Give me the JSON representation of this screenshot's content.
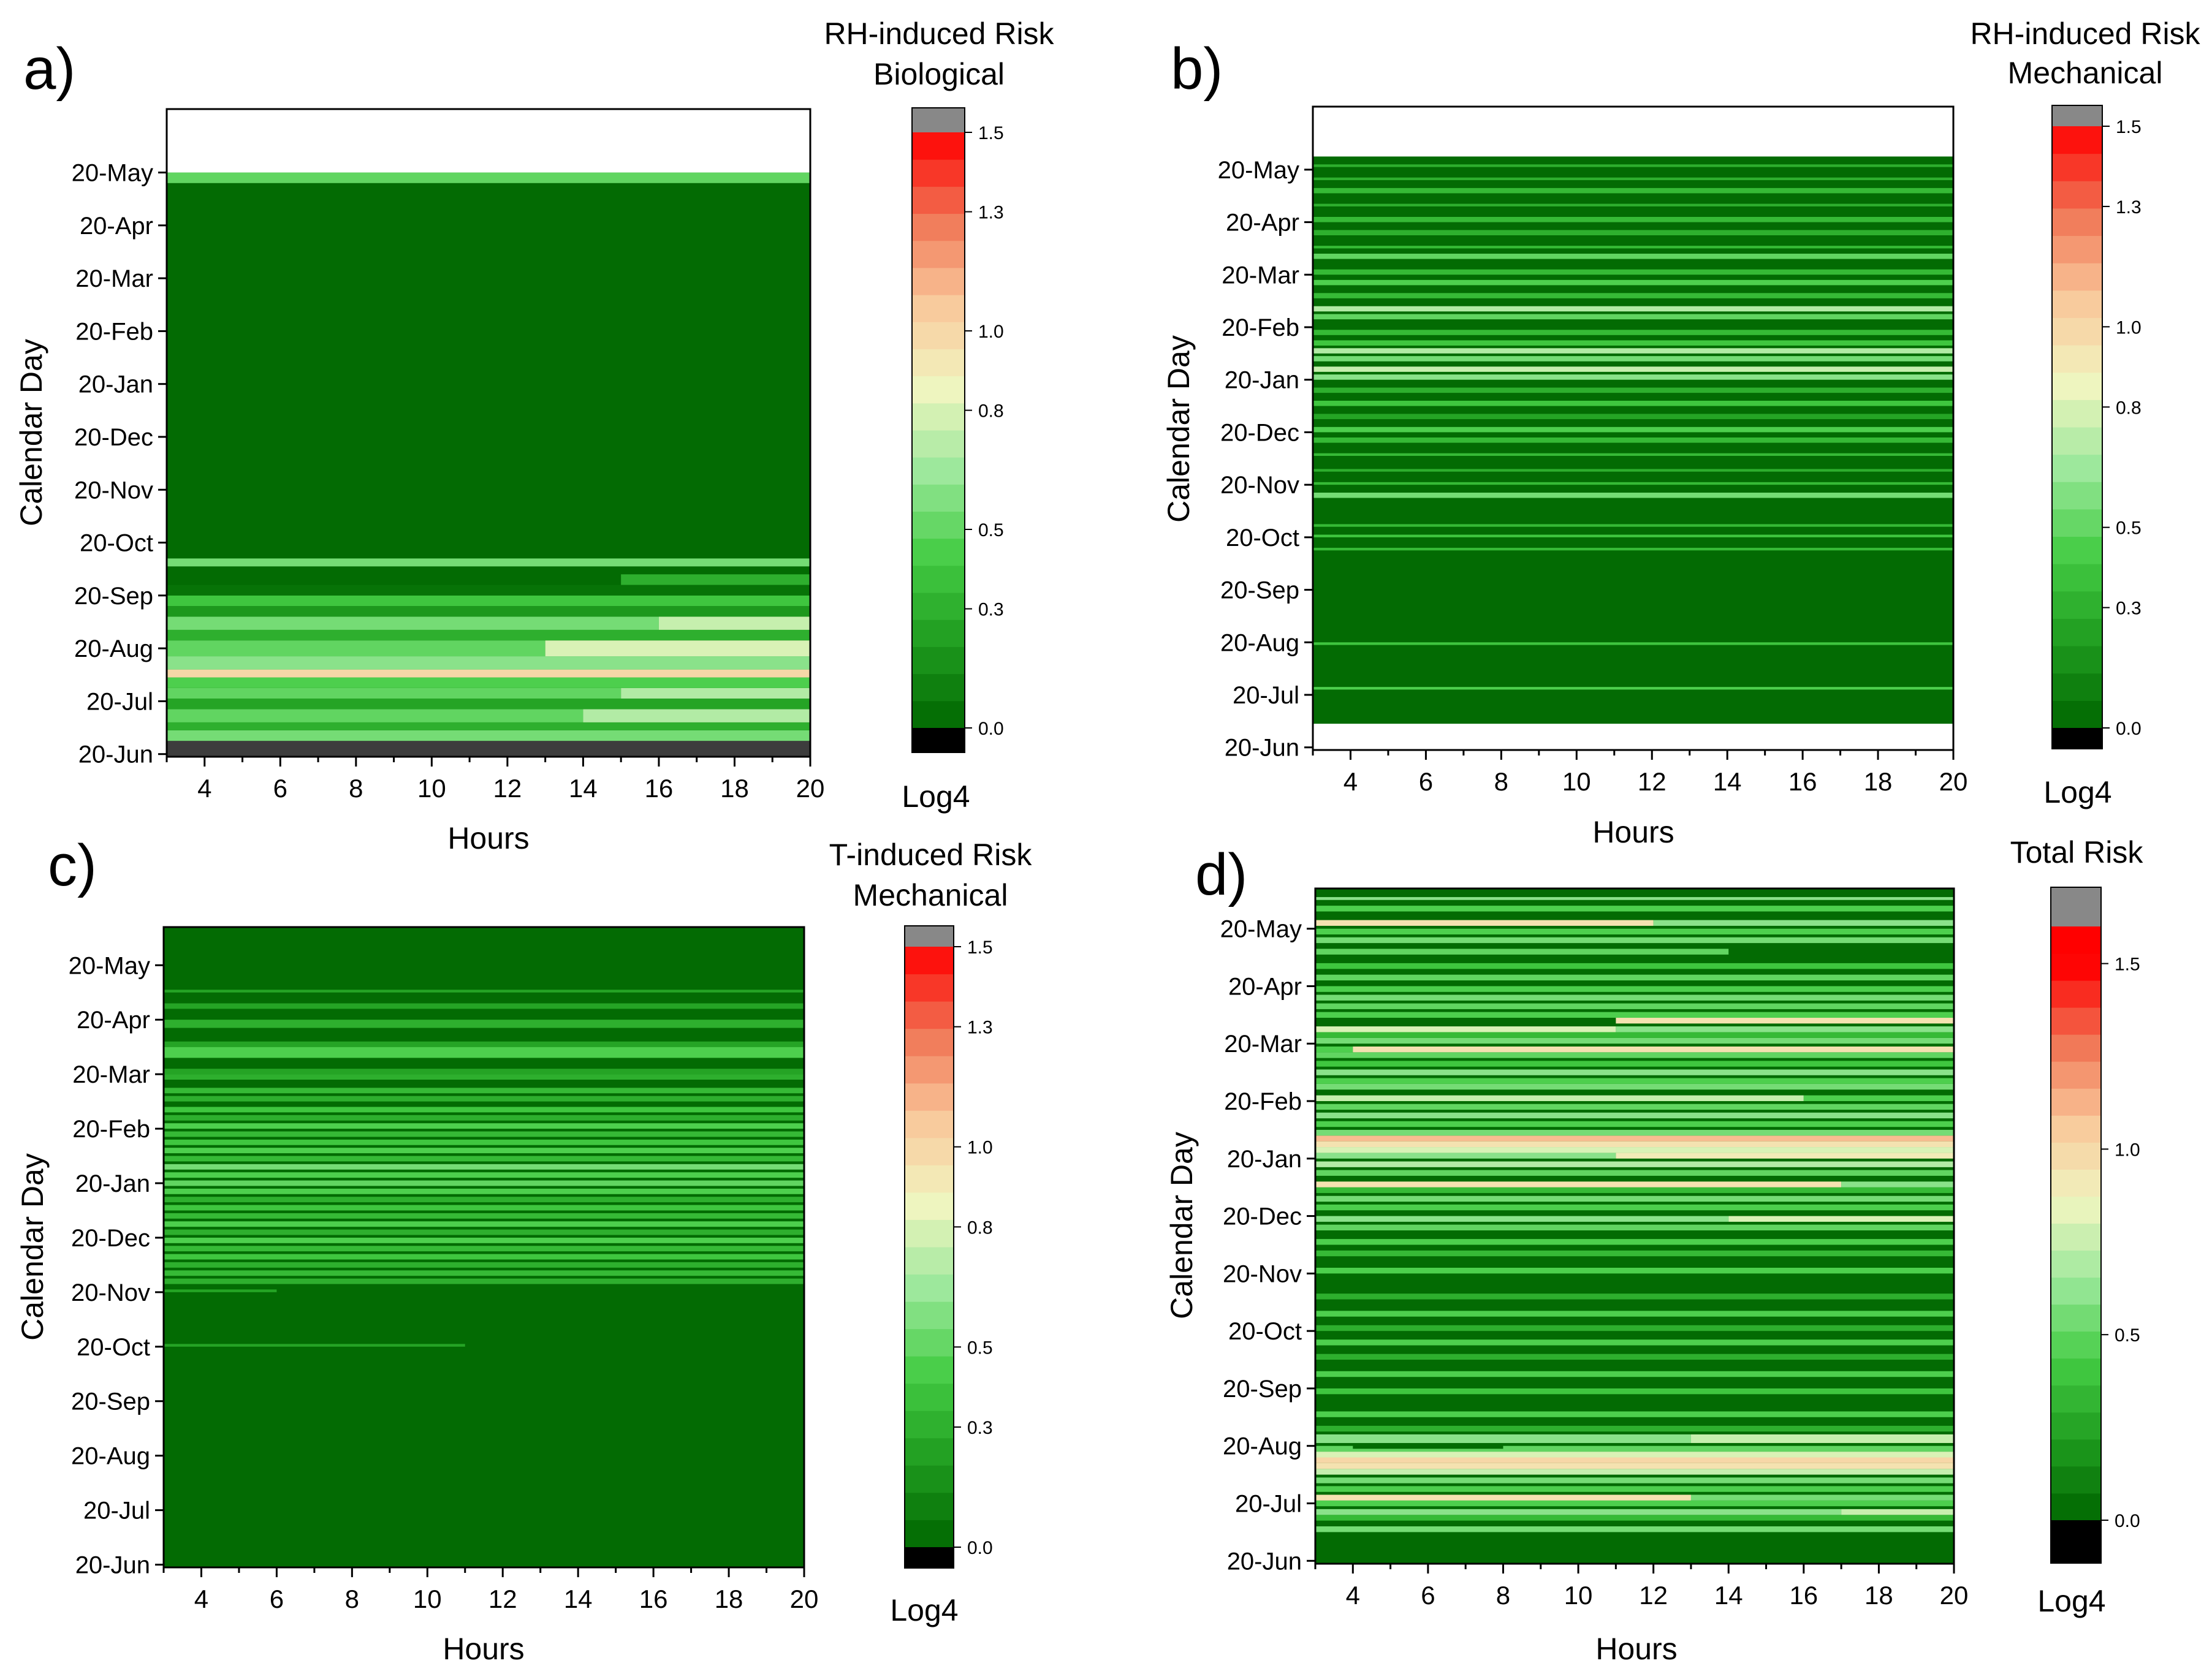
{
  "figure": {
    "colors": {
      "over": "#888888",
      "under": "#000000",
      "gray_band": "#3d3d3d",
      "empty": "#ffffff",
      "scale": [
        "#006600",
        "#1f9c1f",
        "#44cc44",
        "#9be89b",
        "#f0f5c0",
        "#f9c89a",
        "#f07454",
        "#ff0000"
      ]
    }
  },
  "chart_data": [
    {
      "panel": "a)",
      "type": "heatmap",
      "title": "",
      "colorbar_title": [
        "RH-induced Risk",
        "Biological"
      ],
      "colorbar_label": "Log4",
      "xlabel": "Hours",
      "ylabel": "Calendar Day",
      "x_ticks": [
        "4",
        "6",
        "8",
        "10",
        "12",
        "14",
        "16",
        "18",
        "20"
      ],
      "xlim": [
        3,
        20
      ],
      "y_ticks": [
        "20-Jun",
        "20-Jul",
        "20-Aug",
        "20-Sep",
        "20-Oct",
        "20-Nov",
        "20-Dec",
        "20-Jan",
        "20-Feb",
        "20-Mar",
        "20-Apr",
        "20-May"
      ],
      "colorbar_ticks": [
        "0.0",
        "0.3",
        "0.5",
        "0.8",
        "1.0",
        "1.3",
        "1.5"
      ],
      "colorbar_range": [
        0,
        1.5
      ],
      "data_end_month_index": 11.0,
      "bands": [
        {
          "from": -0.05,
          "to": 0.25,
          "value": "gray"
        },
        {
          "from": 0.25,
          "to": 0.45,
          "value": 0.55
        },
        {
          "from": 0.45,
          "to": 0.6,
          "value": 0.3
        },
        {
          "from": 0.6,
          "to": 0.85,
          "value": 0.5,
          "x1": 14,
          "x1_value": 0.7
        },
        {
          "from": 0.85,
          "to": 1.05,
          "value": 0.25
        },
        {
          "from": 1.05,
          "to": 1.25,
          "value": 0.5,
          "x1": 15,
          "x1_value": 0.7
        },
        {
          "from": 1.25,
          "to": 1.45,
          "value": 0.45
        },
        {
          "from": 1.45,
          "to": 1.6,
          "value": 1.0
        },
        {
          "from": 1.6,
          "to": 1.85,
          "value": 0.6
        },
        {
          "from": 1.85,
          "to": 2.15,
          "value": 0.5,
          "x1": 13,
          "x1_value": 0.8
        },
        {
          "from": 2.15,
          "to": 2.35,
          "value": 0.3
        },
        {
          "from": 2.35,
          "to": 2.6,
          "value": 0.55,
          "x1": 16,
          "x1_value": 0.75
        },
        {
          "from": 2.6,
          "to": 2.8,
          "value": 0.2
        },
        {
          "from": 2.8,
          "to": 3.0,
          "value": 0.4
        },
        {
          "from": 3.0,
          "to": 3.2,
          "value": 0.05
        },
        {
          "from": 3.2,
          "to": 3.4,
          "value": 0.3,
          "x0": 15
        },
        {
          "from": 3.55,
          "to": 3.7,
          "value": 0.55
        },
        {
          "from": 10.8,
          "to": 11.0,
          "value": 0.5
        }
      ]
    },
    {
      "panel": "b)",
      "type": "heatmap",
      "title": "",
      "colorbar_title": [
        "RH-induced Risk",
        "Mechanical"
      ],
      "colorbar_label": "Log4",
      "xlabel": "Hours",
      "ylabel": "Calendar Day",
      "x_ticks": [
        "4",
        "6",
        "8",
        "10",
        "12",
        "14",
        "16",
        "18",
        "20"
      ],
      "xlim": [
        3,
        20
      ],
      "y_ticks": [
        "20-Jun",
        "20-Jul",
        "20-Aug",
        "20-Sep",
        "20-Oct",
        "20-Nov",
        "20-Dec",
        "20-Jan",
        "20-Feb",
        "20-Mar",
        "20-Apr",
        "20-May"
      ],
      "colorbar_ticks": [
        "0.0",
        "0.3",
        "0.5",
        "0.8",
        "1.0",
        "1.3",
        "1.5"
      ],
      "colorbar_range": [
        0,
        1.5
      ],
      "data_start_month_index": 0.45,
      "data_end_month_index": 11.25,
      "bands": [
        {
          "from": 1.1,
          "to": 1.15,
          "value": 0.45
        },
        {
          "from": 1.95,
          "to": 2.0,
          "value": 0.4
        },
        {
          "from": 3.75,
          "to": 3.8,
          "value": 0.35
        },
        {
          "from": 4.0,
          "to": 4.05,
          "value": 0.4
        },
        {
          "from": 4.2,
          "to": 4.25,
          "value": 0.35
        },
        {
          "from": 4.75,
          "to": 4.85,
          "value": 0.55
        },
        {
          "from": 5.0,
          "to": 5.05,
          "value": 0.35
        },
        {
          "from": 5.25,
          "to": 5.3,
          "value": 0.3
        },
        {
          "from": 5.55,
          "to": 5.6,
          "value": 0.35
        },
        {
          "from": 5.8,
          "to": 5.9,
          "value": 0.35
        },
        {
          "from": 6.0,
          "to": 6.1,
          "value": 0.45
        },
        {
          "from": 6.25,
          "to": 6.35,
          "value": 0.25
        },
        {
          "from": 6.5,
          "to": 6.6,
          "value": 0.4
        },
        {
          "from": 6.75,
          "to": 6.85,
          "value": 0.3
        },
        {
          "from": 7.0,
          "to": 7.1,
          "value": 0.6
        },
        {
          "from": 7.15,
          "to": 7.25,
          "value": 0.75
        },
        {
          "from": 7.35,
          "to": 7.45,
          "value": 0.55
        },
        {
          "from": 7.5,
          "to": 7.6,
          "value": 0.7
        },
        {
          "from": 7.65,
          "to": 7.75,
          "value": 0.4
        },
        {
          "from": 7.85,
          "to": 7.95,
          "value": 0.35
        },
        {
          "from": 8.15,
          "to": 8.25,
          "value": 0.5
        },
        {
          "from": 8.3,
          "to": 8.4,
          "value": 0.7
        },
        {
          "from": 8.55,
          "to": 8.65,
          "value": 0.35
        },
        {
          "from": 8.8,
          "to": 8.9,
          "value": 0.45
        },
        {
          "from": 9.0,
          "to": 9.1,
          "value": 0.35
        },
        {
          "from": 9.3,
          "to": 9.4,
          "value": 0.5
        },
        {
          "from": 9.5,
          "to": 9.55,
          "value": 0.35
        },
        {
          "from": 9.75,
          "to": 9.85,
          "value": 0.3
        },
        {
          "from": 10.0,
          "to": 10.1,
          "value": 0.35
        },
        {
          "from": 10.3,
          "to": 10.35,
          "value": 0.3
        },
        {
          "from": 10.55,
          "to": 10.65,
          "value": 0.35
        },
        {
          "from": 10.8,
          "to": 10.85,
          "value": 0.3
        },
        {
          "from": 11.05,
          "to": 11.1,
          "value": 0.3
        }
      ]
    },
    {
      "panel": "c)",
      "type": "heatmap",
      "title": "",
      "colorbar_title": [
        "T-induced Risk",
        "Mechanical"
      ],
      "colorbar_label": "Log4",
      "xlabel": "Hours",
      "ylabel": "Calendar Day",
      "x_ticks": [
        "4",
        "6",
        "8",
        "10",
        "12",
        "14",
        "16",
        "18",
        "20"
      ],
      "xlim": [
        3,
        20
      ],
      "y_ticks": [
        "20-Jun",
        "20-Jul",
        "20-Aug",
        "20-Sep",
        "20-Oct",
        "20-Nov",
        "20-Dec",
        "20-Jan",
        "20-Feb",
        "20-Mar",
        "20-Apr",
        "20-May"
      ],
      "colorbar_ticks": [
        "0.0",
        "0.3",
        "0.5",
        "0.8",
        "1.0",
        "1.3",
        "1.5"
      ],
      "colorbar_range": [
        0,
        1.5
      ],
      "data_end_month_index": 11.7,
      "bands": [
        {
          "from": 4.0,
          "to": 4.05,
          "value": 0.25,
          "x1": 11
        },
        {
          "from": 5.0,
          "to": 5.05,
          "value": 0.25,
          "x1": 6
        },
        {
          "from": 5.15,
          "to": 5.25,
          "value": 0.3
        },
        {
          "from": 5.3,
          "to": 5.4,
          "value": 0.35
        },
        {
          "from": 5.45,
          "to": 5.55,
          "value": 0.3
        },
        {
          "from": 5.6,
          "to": 5.7,
          "value": 0.4
        },
        {
          "from": 5.75,
          "to": 5.85,
          "value": 0.35
        },
        {
          "from": 5.9,
          "to": 6.0,
          "value": 0.45
        },
        {
          "from": 6.05,
          "to": 6.15,
          "value": 0.3
        },
        {
          "from": 6.2,
          "to": 6.3,
          "value": 0.45
        },
        {
          "from": 6.35,
          "to": 6.45,
          "value": 0.35
        },
        {
          "from": 6.5,
          "to": 6.6,
          "value": 0.4
        },
        {
          "from": 6.65,
          "to": 6.75,
          "value": 0.3
        },
        {
          "from": 6.8,
          "to": 6.9,
          "value": 0.45
        },
        {
          "from": 6.95,
          "to": 7.05,
          "value": 0.5
        },
        {
          "from": 7.1,
          "to": 7.2,
          "value": 0.45
        },
        {
          "from": 7.25,
          "to": 7.35,
          "value": 0.55
        },
        {
          "from": 7.4,
          "to": 7.5,
          "value": 0.35
        },
        {
          "from": 7.55,
          "to": 7.65,
          "value": 0.45
        },
        {
          "from": 7.7,
          "to": 7.8,
          "value": 0.4
        },
        {
          "from": 7.85,
          "to": 7.95,
          "value": 0.35
        },
        {
          "from": 8.0,
          "to": 8.1,
          "value": 0.45
        },
        {
          "from": 8.15,
          "to": 8.25,
          "value": 0.3
        },
        {
          "from": 8.3,
          "to": 8.4,
          "value": 0.4
        },
        {
          "from": 8.5,
          "to": 8.6,
          "value": 0.3
        },
        {
          "from": 8.65,
          "to": 8.75,
          "value": 0.35
        },
        {
          "from": 8.9,
          "to": 9.0,
          "value": 0.3
        },
        {
          "from": 9.0,
          "to": 9.1,
          "value": 0.25
        },
        {
          "from": 9.3,
          "to": 9.5,
          "value": 0.45
        },
        {
          "from": 9.5,
          "to": 9.6,
          "value": 0.25
        },
        {
          "from": 9.85,
          "to": 10.0,
          "value": 0.3
        },
        {
          "from": 10.2,
          "to": 10.3,
          "value": 0.25
        },
        {
          "from": 10.5,
          "to": 10.55,
          "value": 0.25
        }
      ]
    },
    {
      "panel": "d)",
      "type": "heatmap",
      "title": "",
      "colorbar_title": [
        "Total Risk"
      ],
      "colorbar_label": "Log4",
      "xlabel": "Hours",
      "ylabel": "Calendar Day",
      "x_ticks": [
        "4",
        "6",
        "8",
        "10",
        "12",
        "14",
        "16",
        "18",
        "20"
      ],
      "xlim": [
        3,
        20
      ],
      "y_ticks": [
        "20-Jun",
        "20-Jul",
        "20-Aug",
        "20-Sep",
        "20-Oct",
        "20-Nov",
        "20-Dec",
        "20-Jan",
        "20-Feb",
        "20-Mar",
        "20-Apr",
        "20-May"
      ],
      "colorbar_ticks": [
        "0.0",
        "0.5",
        "1.0",
        "1.5"
      ],
      "colorbar_range": [
        0,
        1.5
      ],
      "data_end_month_index": 11.7,
      "bands": [
        {
          "from": 0.5,
          "to": 0.6,
          "value": 0.55
        },
        {
          "from": 0.7,
          "to": 0.8,
          "value": 0.35
        },
        {
          "from": 0.8,
          "to": 0.9,
          "value": 0.6,
          "x1": 17,
          "x1_value": 0.75
        },
        {
          "from": 0.95,
          "to": 1.05,
          "value": 0.45
        },
        {
          "from": 1.05,
          "to": 1.15,
          "value": 0.55,
          "x0": 13,
          "x0_value": 0.95
        },
        {
          "from": 1.2,
          "to": 1.3,
          "value": 0.45
        },
        {
          "from": 1.35,
          "to": 1.45,
          "value": 0.55
        },
        {
          "from": 1.5,
          "to": 1.6,
          "value": 0.75
        },
        {
          "from": 1.6,
          "to": 1.7,
          "value": 0.95
        },
        {
          "from": 1.7,
          "to": 1.8,
          "value": 1.0
        },
        {
          "from": 1.8,
          "to": 1.9,
          "value": 0.8
        },
        {
          "from": 1.9,
          "to": 2.0,
          "value": 0.5
        },
        {
          "from": 1.95,
          "to": 2.05,
          "value": 0.02,
          "x0": 4,
          "x1": 8
        },
        {
          "from": 2.05,
          "to": 2.2,
          "value": 0.75,
          "x0": 13,
          "x0_value": 0.6
        },
        {
          "from": 2.25,
          "to": 2.35,
          "value": 0.3
        },
        {
          "from": 2.5,
          "to": 2.6,
          "value": 0.45
        },
        {
          "from": 2.9,
          "to": 3.0,
          "value": 0.4
        },
        {
          "from": 3.2,
          "to": 3.3,
          "value": 0.45
        },
        {
          "from": 3.5,
          "to": 3.6,
          "value": 0.3
        },
        {
          "from": 3.75,
          "to": 3.85,
          "value": 0.45
        },
        {
          "from": 4.0,
          "to": 4.1,
          "value": 0.3
        },
        {
          "from": 4.25,
          "to": 4.35,
          "value": 0.45
        },
        {
          "from": 4.55,
          "to": 4.65,
          "value": 0.3
        },
        {
          "from": 5.0,
          "to": 5.1,
          "value": 0.45
        },
        {
          "from": 5.3,
          "to": 5.4,
          "value": 0.35
        },
        {
          "from": 5.5,
          "to": 5.6,
          "value": 0.45
        },
        {
          "from": 5.75,
          "to": 5.85,
          "value": 0.5
        },
        {
          "from": 5.9,
          "to": 6.0,
          "value": 0.6,
          "x1": 14,
          "x1_value": 0.8
        },
        {
          "from": 6.1,
          "to": 6.2,
          "value": 0.45
        },
        {
          "from": 6.25,
          "to": 6.35,
          "value": 0.55
        },
        {
          "from": 6.4,
          "to": 6.5,
          "value": 0.35
        },
        {
          "from": 6.5,
          "to": 6.6,
          "value": 0.6,
          "x0": 17,
          "x0_value": 0.95
        },
        {
          "from": 6.7,
          "to": 6.8,
          "value": 0.5
        },
        {
          "from": 6.85,
          "to": 6.95,
          "value": 0.7
        },
        {
          "from": 7.0,
          "to": 7.1,
          "value": 0.9,
          "x0": 11,
          "x0_value": 0.6
        },
        {
          "from": 7.1,
          "to": 7.2,
          "value": 0.8
        },
        {
          "from": 7.2,
          "to": 7.3,
          "value": 0.95
        },
        {
          "from": 7.3,
          "to": 7.4,
          "value": 1.1
        },
        {
          "from": 7.4,
          "to": 7.5,
          "value": 0.55
        },
        {
          "from": 7.55,
          "to": 7.65,
          "value": 0.45
        },
        {
          "from": 7.7,
          "to": 7.8,
          "value": 0.6
        },
        {
          "from": 7.85,
          "to": 7.95,
          "value": 0.5
        },
        {
          "from": 8.0,
          "to": 8.1,
          "value": 0.45,
          "x0": 16,
          "x0_value": 0.75
        },
        {
          "from": 8.2,
          "to": 8.3,
          "value": 0.55
        },
        {
          "from": 8.3,
          "to": 8.4,
          "value": 0.45
        },
        {
          "from": 8.45,
          "to": 8.55,
          "value": 0.6
        },
        {
          "from": 8.6,
          "to": 8.7,
          "value": 0.4
        },
        {
          "from": 8.75,
          "to": 8.85,
          "value": 0.5
        },
        {
          "from": 8.85,
          "to": 8.95,
          "value": 0.45,
          "x0": 3,
          "x1": 4,
          "x1_value": 0.95
        },
        {
          "from": 9.0,
          "to": 9.1,
          "value": 0.55
        },
        {
          "from": 9.1,
          "to": 9.2,
          "value": 0.35
        },
        {
          "from": 9.2,
          "to": 9.3,
          "value": 0.6,
          "x0": 11,
          "x0_value": 0.8
        },
        {
          "from": 9.35,
          "to": 9.45,
          "value": 0.95,
          "x0": 11,
          "x1": 20
        },
        {
          "from": 9.45,
          "to": 9.55,
          "value": 0.45
        },
        {
          "from": 9.6,
          "to": 9.7,
          "value": 0.5
        },
        {
          "from": 9.75,
          "to": 9.85,
          "value": 0.55
        },
        {
          "from": 9.9,
          "to": 10.0,
          "value": 0.45
        },
        {
          "from": 10.1,
          "to": 10.2,
          "value": 0.5
        },
        {
          "from": 10.3,
          "to": 10.4,
          "value": 0.4
        },
        {
          "from": 10.55,
          "to": 10.65,
          "value": 0.5,
          "x1": 14
        },
        {
          "from": 10.75,
          "to": 10.85,
          "value": 0.55
        },
        {
          "from": 10.9,
          "to": 11.0,
          "value": 0.45
        },
        {
          "from": 11.05,
          "to": 11.15,
          "value": 0.6,
          "x0": 12,
          "x0_value": 0.95
        },
        {
          "from": 11.3,
          "to": 11.4,
          "value": 0.45
        },
        {
          "from": 11.5,
          "to": 11.55,
          "value": 0.6
        }
      ]
    }
  ]
}
